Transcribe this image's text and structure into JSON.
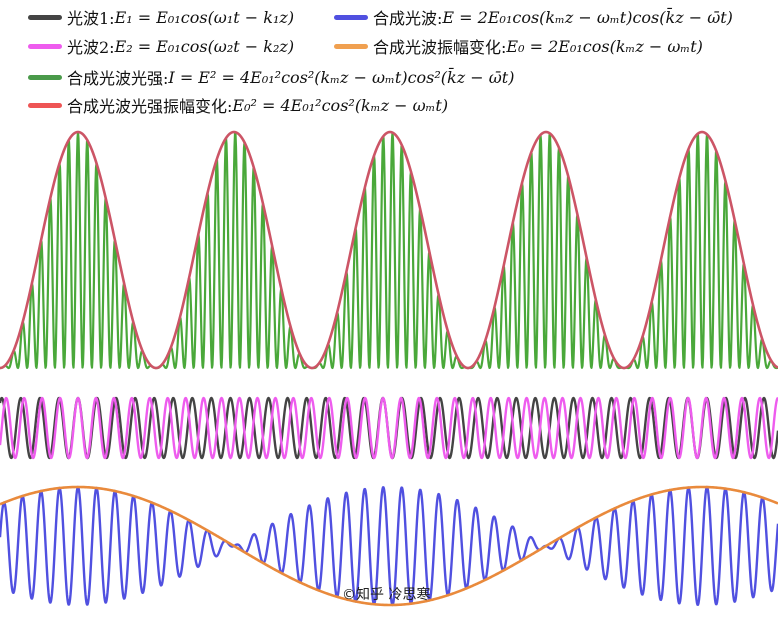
{
  "legend": [
    {
      "label": "光波1:",
      "formula": "E₁ = E₀₁cos(ω₁t − k₁z)",
      "color": "#444444"
    },
    {
      "label": "合成光波:",
      "formula": "E = 2E₀₁cos(kₘz − ωₘt)cos(k̄z − ω̄t)",
      "color": "#5050e0"
    },
    {
      "label": "光波2:",
      "formula": "E₂ = E₀₁cos(ω₂t − k₂z)",
      "color": "#ee5cee"
    },
    {
      "label": "合成光波振幅变化:",
      "formula": "E₀ = 2E₀₁cos(kₘz − ωₘt)",
      "color": "#f0a050"
    },
    {
      "label": "合成光波光强:",
      "formula": "I = E² = 4E₀₁²cos²(kₘz − ωₘt)cos²(k̄z − ω̄t)",
      "color": "#4a9a4a"
    },
    {
      "label": "合成光波光强振幅变化:",
      "formula": "E₀² = 4E₀₁²cos²(kₘz − ωₘt)",
      "color": "#ee5555"
    }
  ],
  "colors": {
    "intensity": "#4aa83a",
    "intensity_envelope": "#cc5566",
    "wave1": "#444444",
    "wave2": "#ee5cee",
    "combined": "#5050e0",
    "amplitude_envelope": "#e98a3c"
  },
  "watermark": "©知乎 冷思寒"
}
